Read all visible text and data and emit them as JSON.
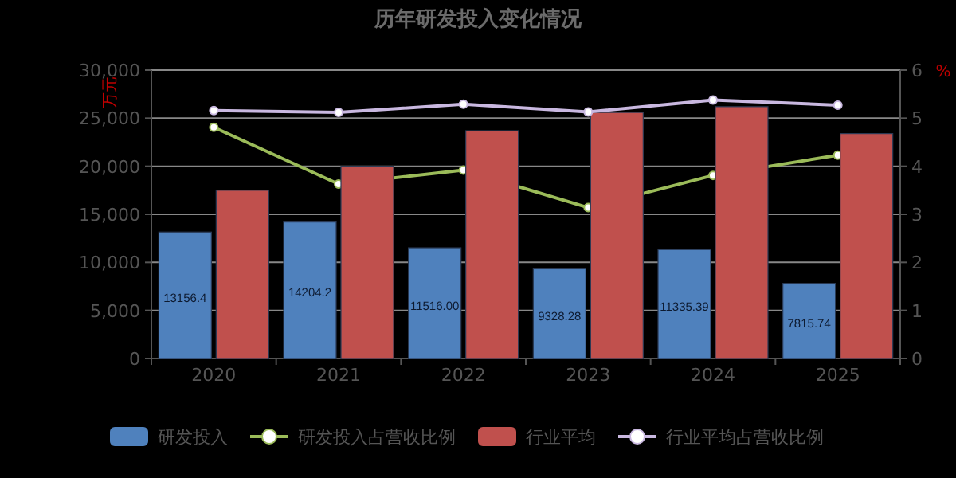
{
  "chart_data": {
    "type": "bar",
    "title": "历年研发投入变化情况",
    "ylabel": "万元",
    "y2label": "%",
    "categories": [
      "2020",
      "2021",
      "2022",
      "2023",
      "2024",
      "2025"
    ],
    "series": [
      {
        "name": "研发投入",
        "color": "#4f81bd",
        "values": [
          13156.4,
          14204.2,
          11516.0,
          9328.28,
          11335.39,
          7815.74
        ],
        "value_labels": [
          "13156.4",
          "14204.2",
          "11516.00",
          "9328.28",
          "11335.39",
          "7815.74"
        ]
      },
      {
        "name": "研发投入占营收比例",
        "type": "line",
        "axis": "y2",
        "marker": "circle",
        "color": "#9bbb59",
        "values": [
          4.81,
          3.63,
          3.92,
          3.14,
          3.81,
          4.23
        ]
      },
      {
        "name": "行业平均",
        "color": "#c0504d",
        "values": [
          17500,
          20000,
          23700,
          25600,
          26200,
          23400
        ]
      },
      {
        "name": "行业平均占营收比例",
        "type": "line",
        "axis": "y2",
        "marker": "circle",
        "color": "#c9b8e0",
        "values": [
          5.16,
          5.12,
          5.29,
          5.13,
          5.38,
          5.27
        ]
      }
    ],
    "ylim": [
      0,
      30000
    ],
    "yticks": [
      0,
      {
        "value": 5000,
        "label": "5,000"
      },
      {
        "value": 10000,
        "label": "10,000"
      },
      {
        "value": 15000,
        "label": "15,000"
      },
      {
        "value": 20000,
        "label": "20,000"
      },
      {
        "value": 25000,
        "label": "25,000"
      },
      {
        "value": 30000,
        "label": "30,000"
      }
    ],
    "y2lim": [
      0,
      6
    ],
    "y2ticks": [
      0,
      1,
      2,
      3,
      4,
      5,
      6
    ],
    "grid": "y",
    "legend": "bottom"
  }
}
